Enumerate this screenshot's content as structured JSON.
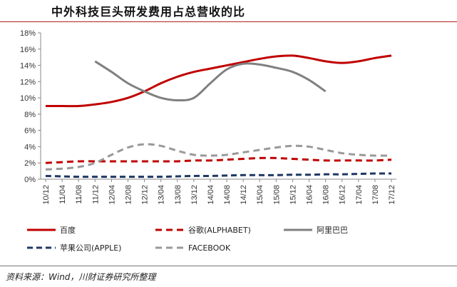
{
  "title": "中外科技巨头研发费用占总营收的比",
  "source": "资料来源：Wind，川财证券研究所整理",
  "chart_data": {
    "type": "line",
    "ylim": [
      0,
      18
    ],
    "yticks": [
      "0%",
      "2%",
      "4%",
      "6%",
      "8%",
      "10%",
      "12%",
      "14%",
      "16%",
      "18%"
    ],
    "categories": [
      "10/12",
      "11/04",
      "11/08",
      "11/12",
      "12/04",
      "12/08",
      "12/12",
      "13/04",
      "13/08",
      "13/12",
      "14/04",
      "14/08",
      "14/12",
      "15/04",
      "15/08",
      "15/12",
      "16/04",
      "16/08",
      "16/12",
      "17/04",
      "17/08",
      "17/12"
    ],
    "grid": false,
    "legend_position": "bottom",
    "series": [
      {
        "name": "百度",
        "color": "#c00000",
        "style": "solid",
        "points": [
          [
            0,
            9.0
          ],
          [
            1,
            9.0
          ],
          [
            2,
            9.0
          ],
          [
            3,
            9.2
          ],
          [
            4,
            9.5
          ],
          [
            5,
            10.0
          ],
          [
            6,
            10.8
          ],
          [
            7,
            11.8
          ],
          [
            8,
            12.6
          ],
          [
            9,
            13.2
          ],
          [
            10,
            13.6
          ],
          [
            11,
            14.0
          ],
          [
            12,
            14.4
          ],
          [
            13,
            14.8
          ],
          [
            14,
            15.1
          ],
          [
            15,
            15.2
          ],
          [
            16,
            14.9
          ],
          [
            17,
            14.5
          ],
          [
            18,
            14.3
          ],
          [
            19,
            14.5
          ],
          [
            20,
            14.9
          ],
          [
            21,
            15.2
          ]
        ]
      },
      {
        "name": "谷歌(ALPHABET)",
        "color": "#c00000",
        "style": "dashed",
        "points": [
          [
            0,
            2.0
          ],
          [
            1,
            2.1
          ],
          [
            2,
            2.2
          ],
          [
            3,
            2.2
          ],
          [
            4,
            2.2
          ],
          [
            5,
            2.2
          ],
          [
            6,
            2.2
          ],
          [
            7,
            2.2
          ],
          [
            8,
            2.2
          ],
          [
            9,
            2.3
          ],
          [
            10,
            2.3
          ],
          [
            11,
            2.4
          ],
          [
            12,
            2.5
          ],
          [
            13,
            2.6
          ],
          [
            14,
            2.6
          ],
          [
            15,
            2.5
          ],
          [
            16,
            2.4
          ],
          [
            17,
            2.3
          ],
          [
            18,
            2.3
          ],
          [
            19,
            2.3
          ],
          [
            20,
            2.3
          ],
          [
            21,
            2.4
          ]
        ]
      },
      {
        "name": "阿里巴巴",
        "color": "#808080",
        "style": "solid",
        "points": [
          [
            3,
            14.5
          ],
          [
            4,
            13.2
          ],
          [
            5,
            11.8
          ],
          [
            6,
            10.8
          ],
          [
            7,
            10.0
          ],
          [
            8,
            9.7
          ],
          [
            9,
            10.0
          ],
          [
            10,
            11.8
          ],
          [
            11,
            13.5
          ],
          [
            12,
            14.2
          ],
          [
            13,
            14.1
          ],
          [
            14,
            13.7
          ],
          [
            15,
            13.2
          ],
          [
            16,
            12.2
          ],
          [
            17,
            10.8
          ]
        ]
      },
      {
        "name": "苹果公司(APPLE)",
        "color": "#1f3864",
        "style": "dashed",
        "points": [
          [
            0,
            0.4
          ],
          [
            1,
            0.35
          ],
          [
            2,
            0.3
          ],
          [
            3,
            0.3
          ],
          [
            4,
            0.3
          ],
          [
            5,
            0.3
          ],
          [
            6,
            0.3
          ],
          [
            7,
            0.3
          ],
          [
            8,
            0.35
          ],
          [
            9,
            0.4
          ],
          [
            10,
            0.4
          ],
          [
            11,
            0.45
          ],
          [
            12,
            0.5
          ],
          [
            13,
            0.5
          ],
          [
            14,
            0.5
          ],
          [
            15,
            0.55
          ],
          [
            16,
            0.55
          ],
          [
            17,
            0.6
          ],
          [
            18,
            0.6
          ],
          [
            19,
            0.65
          ],
          [
            20,
            0.7
          ],
          [
            21,
            0.7
          ]
        ]
      },
      {
        "name": "FACEBOOK",
        "color": "#999999",
        "style": "dashed",
        "points": [
          [
            0,
            1.2
          ],
          [
            1,
            1.3
          ],
          [
            2,
            1.5
          ],
          [
            3,
            2.0
          ],
          [
            4,
            3.0
          ],
          [
            5,
            3.9
          ],
          [
            6,
            4.3
          ],
          [
            7,
            4.1
          ],
          [
            8,
            3.5
          ],
          [
            9,
            3.0
          ],
          [
            10,
            2.9
          ],
          [
            11,
            3.0
          ],
          [
            12,
            3.3
          ],
          [
            13,
            3.6
          ],
          [
            14,
            3.9
          ],
          [
            15,
            4.1
          ],
          [
            16,
            4.0
          ],
          [
            17,
            3.6
          ],
          [
            18,
            3.2
          ],
          [
            19,
            3.0
          ],
          [
            20,
            2.9
          ],
          [
            21,
            2.9
          ]
        ]
      }
    ]
  }
}
